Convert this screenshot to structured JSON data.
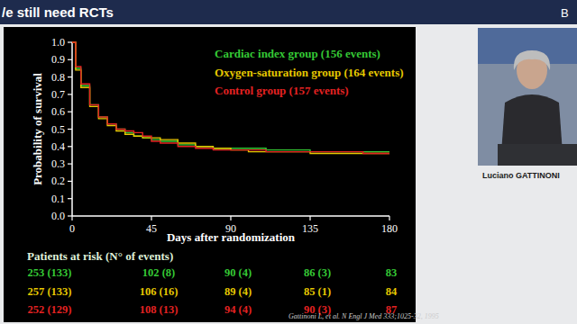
{
  "slide": {
    "title": "/e still need RCTs",
    "corner": "B",
    "speaker": "Luciano GATTINONI"
  },
  "chart_data": {
    "type": "line",
    "line_style": "step",
    "x_label": "Days after randomization",
    "y_label": "Probability of survival",
    "xlim": [
      0,
      180
    ],
    "ylim": [
      0,
      1
    ],
    "xticks": [
      0,
      45,
      90,
      135,
      180
    ],
    "yticks": [
      {
        "value": 0,
        "label": "0.0"
      },
      {
        "value": 0.1,
        "label": "0.1"
      },
      {
        "value": 0.2,
        "label": "0.2"
      },
      {
        "value": 0.3,
        "label": "0.3"
      },
      {
        "value": 0.4,
        "label": "0.4"
      },
      {
        "value": 0.5,
        "label": "0.5"
      },
      {
        "value": 0.6,
        "label": "0.6"
      },
      {
        "value": 0.7,
        "label": "0.7"
      },
      {
        "value": 0.8,
        "label": "0.8"
      },
      {
        "value": 0.9,
        "label": "0.9"
      },
      {
        "value": 1,
        "label": "1.0"
      }
    ],
    "grid": false,
    "legend": "top-right",
    "x": [
      0,
      2,
      5,
      10,
      15,
      20,
      25,
      30,
      35,
      40,
      45,
      50,
      60,
      70,
      80,
      90,
      100,
      110,
      120,
      135,
      150,
      165,
      180
    ],
    "series": [
      {
        "name": "Cardiac index group (156 events)",
        "color": "#35c935",
        "values": [
          1,
          0.85,
          0.75,
          0.64,
          0.57,
          0.53,
          0.5,
          0.48,
          0.46,
          0.45,
          0.44,
          0.43,
          0.41,
          0.4,
          0.39,
          0.39,
          0.39,
          0.38,
          0.38,
          0.37,
          0.37,
          0.37,
          0.37
        ]
      },
      {
        "name": "Oxygen-saturation group (164 events)",
        "color": "#e6c800",
        "values": [
          1,
          0.84,
          0.74,
          0.63,
          0.56,
          0.52,
          0.49,
          0.47,
          0.46,
          0.45,
          0.45,
          0.44,
          0.42,
          0.4,
          0.39,
          0.38,
          0.37,
          0.37,
          0.37,
          0.36,
          0.36,
          0.36,
          0.36
        ]
      },
      {
        "name": "Control group (157 events)",
        "color": "#e32222",
        "values": [
          1,
          0.86,
          0.76,
          0.64,
          0.57,
          0.53,
          0.5,
          0.49,
          0.48,
          0.46,
          0.43,
          0.42,
          0.4,
          0.39,
          0.38,
          0.38,
          0.38,
          0.37,
          0.37,
          0.37,
          0.37,
          0.36,
          0.36
        ]
      }
    ],
    "risk_table": {
      "title": "Patients at risk (N° of events)",
      "rows": [
        [
          "253 (133)",
          "102 (8)",
          "90 (4)",
          "86 (3)",
          "83"
        ],
        [
          "257 (133)",
          "106 (16)",
          "89 (4)",
          "85 (1)",
          "84"
        ],
        [
          "252 (129)",
          "108 (13)",
          "94 (4)",
          "90 (3)",
          "87"
        ]
      ]
    },
    "source": "Gattinoni L, et al. N Engl J Med 333;1025-32, 1995"
  }
}
